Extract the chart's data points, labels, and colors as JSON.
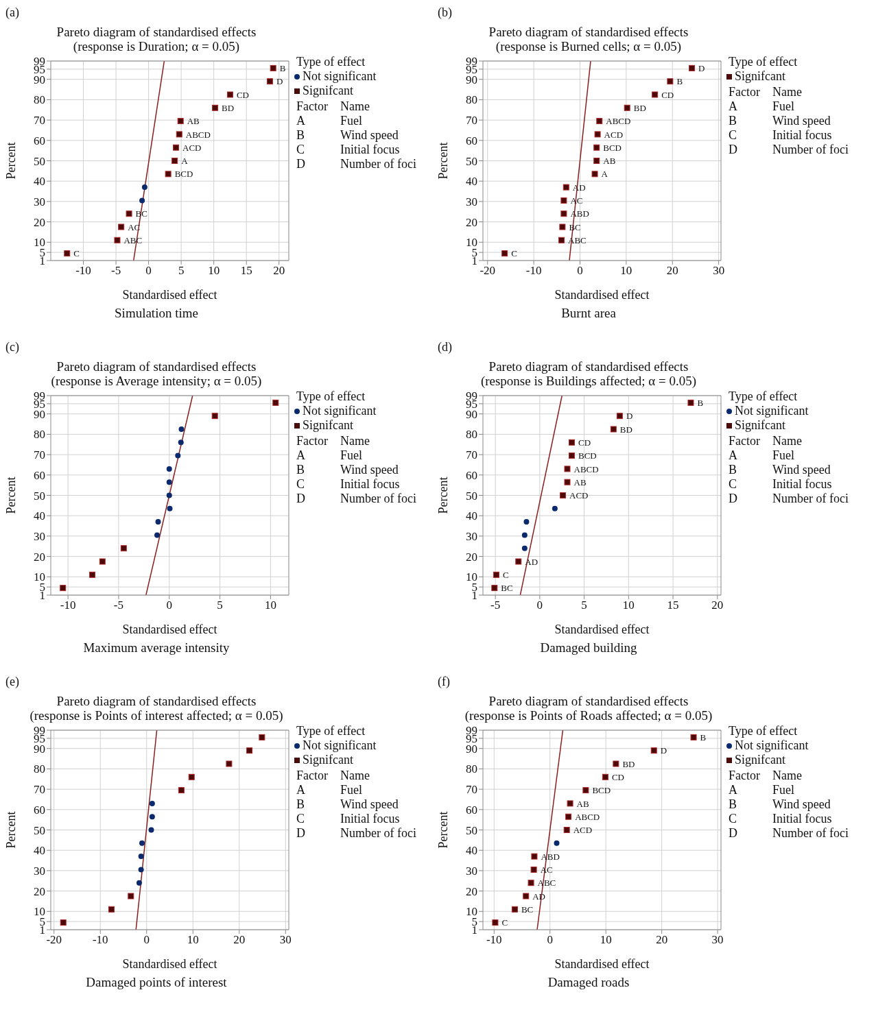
{
  "chart_data": [
    {
      "type": "scatter",
      "title": "Pareto diagram of standardised effects",
      "subtitle": "(response is Duration; α = 0.05)",
      "xlabel": "Standardised effect",
      "ylabel": "Percent",
      "legend_title": "Type of effect",
      "legend": "right",
      "grid": true,
      "xlim": [
        -15,
        21.5
      ],
      "xticks": [
        -10,
        -5,
        0,
        5,
        10,
        15,
        20
      ],
      "ylim": [
        1,
        99
      ],
      "yticks": [
        1,
        5,
        10,
        20,
        30,
        40,
        50,
        60,
        70,
        80,
        90,
        95,
        99
      ],
      "annotations": [
        "(a)",
        "Simulation time",
        "Factor",
        "Name",
        "A",
        "Fuel",
        "B",
        "Wind speed",
        "C",
        "Initial focus",
        "D",
        "Number of foci"
      ],
      "series": [
        {
          "name": "Not significant",
          "marker": "circle",
          "color": "#0b2a6e",
          "x": [
            -1.0,
            -0.6
          ],
          "values": [
            30.5,
            37
          ]
        },
        {
          "name": "Signifcant",
          "marker": "square",
          "color": "#4d0a0a",
          "x": [
            -12.5,
            -4.8,
            -4.2,
            -3.0,
            3.0,
            4.0,
            4.2,
            4.7,
            4.9,
            10.2,
            12.5,
            18.6,
            19.1
          ],
          "values": [
            4.5,
            11,
            17.5,
            24,
            43.5,
            50,
            56.5,
            63,
            69.5,
            76,
            82.5,
            89,
            95.5
          ],
          "value_labels": [
            "C",
            "ABC",
            "AC",
            "BC",
            "BCD",
            "A",
            "ACD",
            "ABCD",
            "AB",
            "BD",
            "CD",
            "D",
            "B"
          ]
        },
        {
          "type": "line",
          "marker": "none",
          "color": "#8b1e1e",
          "x": [
            -2.3,
            2.4
          ],
          "values": [
            1,
            99
          ]
        }
      ]
    },
    {
      "type": "scatter",
      "title": "Pareto diagram of standardised effects",
      "subtitle": "(response is Burned cells; α = 0.05)",
      "xlabel": "Standardised effect",
      "ylabel": "Percent",
      "legend_title": "Type of effect",
      "legend": "right",
      "grid": true,
      "xlim": [
        -21,
        30.5
      ],
      "xticks": [
        -20,
        -10,
        0,
        10,
        20,
        30
      ],
      "ylim": [
        1,
        99
      ],
      "yticks": [
        1,
        5,
        10,
        20,
        30,
        40,
        50,
        60,
        70,
        80,
        90,
        95,
        99
      ],
      "annotations": [
        "(b)",
        "Burnt area",
        "Factor",
        "Name",
        "A",
        "Fuel",
        "B",
        "Wind speed",
        "C",
        "Initial focus",
        "D",
        "Number of foci"
      ],
      "series": [
        {
          "name": "Signifcant",
          "marker": "square",
          "color": "#4d0a0a",
          "x": [
            -16.3,
            -4.0,
            -3.8,
            -3.5,
            -3.5,
            -3.0,
            3.2,
            3.6,
            3.6,
            3.8,
            4.2,
            10.2,
            16.2,
            19.5,
            24.2
          ],
          "values": [
            4.5,
            11,
            17.5,
            24,
            30.5,
            37,
            43.5,
            50,
            56.5,
            63,
            69.5,
            76,
            82.5,
            89,
            95.5
          ],
          "value_labels": [
            "C",
            "ABC",
            "BC",
            "ABD",
            "AC",
            "AD",
            "A",
            "AB",
            "BCD",
            "ACD",
            "ABCD",
            "BD",
            "CD",
            "B",
            "D"
          ]
        },
        {
          "type": "line",
          "marker": "none",
          "color": "#8b1e1e",
          "x": [
            -2.3,
            2.3
          ],
          "values": [
            1,
            99
          ]
        }
      ]
    },
    {
      "type": "scatter",
      "title": "Pareto diagram of standardised effects",
      "subtitle": "(response is Average intensity; α = 0.05)",
      "xlabel": "Standardised effect",
      "ylabel": "Percent",
      "legend_title": "Type of effect",
      "legend": "right",
      "grid": true,
      "xlim": [
        -11.7,
        11.8
      ],
      "xticks": [
        -10,
        -5,
        0,
        5,
        10
      ],
      "ylim": [
        1,
        99
      ],
      "yticks": [
        1,
        5,
        10,
        20,
        30,
        40,
        50,
        60,
        70,
        80,
        90,
        95,
        99
      ],
      "annotations": [
        "(c)",
        "Maximum average intensity",
        "Factor",
        "Name",
        "A",
        "Fuel",
        "B",
        "Wind speed",
        "C",
        "Initial focus",
        "D",
        "Number of foci"
      ],
      "series": [
        {
          "name": "Not significant",
          "marker": "circle",
          "color": "#0b2a6e",
          "x": [
            -1.2,
            -1.1,
            0.05,
            0.0,
            0.0,
            0.0,
            0.85,
            1.15,
            1.2
          ],
          "values": [
            30.5,
            37,
            43.5,
            50,
            56.5,
            63,
            69.5,
            76,
            82.5
          ]
        },
        {
          "name": "Signifcant",
          "marker": "square",
          "color": "#4d0a0a",
          "x": [
            -10.5,
            -7.6,
            -6.6,
            -4.5,
            4.5,
            10.5
          ],
          "values": [
            4.5,
            11,
            17.5,
            24,
            89,
            95.5
          ]
        },
        {
          "type": "line",
          "marker": "none",
          "color": "#8b1e1e",
          "x": [
            -2.3,
            2.3
          ],
          "values": [
            1,
            99
          ]
        }
      ]
    },
    {
      "type": "scatter",
      "title": "Pareto diagram of standardised effects",
      "subtitle": "(response is Buildings affected; α = 0.05)",
      "xlabel": "Standardised effect",
      "ylabel": "Percent",
      "legend_title": "Type of effect",
      "legend": "right",
      "grid": true,
      "xlim": [
        -6.4,
        20.4
      ],
      "xticks": [
        -5,
        0,
        5,
        10,
        15,
        20
      ],
      "ylim": [
        1,
        99
      ],
      "yticks": [
        1,
        5,
        10,
        20,
        30,
        40,
        50,
        60,
        70,
        80,
        90,
        95,
        99
      ],
      "annotations": [
        "(d)",
        "Damaged building",
        "Factor",
        "Name",
        "A",
        "Fuel",
        "B",
        "Wind speed",
        "C",
        "Initial focus",
        "D",
        "Number of foci"
      ],
      "series": [
        {
          "name": "Not significant",
          "marker": "circle",
          "color": "#0b2a6e",
          "x": [
            -1.7,
            -1.7,
            -1.5,
            1.7
          ],
          "values": [
            24,
            30.5,
            37,
            43.5
          ]
        },
        {
          "name": "Signifcant",
          "marker": "square",
          "color": "#4d0a0a",
          "x": [
            -5.1,
            -4.9,
            -2.4,
            2.6,
            3.1,
            3.1,
            3.6,
            3.6,
            8.3,
            9.0,
            17.0
          ],
          "values": [
            4.5,
            11,
            17.5,
            50,
            56.5,
            63,
            69.5,
            76,
            82.5,
            89,
            95.5
          ],
          "value_labels": [
            "BC",
            "C",
            "AD",
            "ACD",
            "AB",
            "ABCD",
            "BCD",
            "CD",
            "BD",
            "D",
            "B"
          ]
        },
        {
          "type": "line",
          "marker": "none",
          "color": "#8b1e1e",
          "x": [
            -2.2,
            2.5
          ],
          "values": [
            1,
            99
          ]
        }
      ]
    },
    {
      "type": "scatter",
      "title": "Pareto diagram of standardised effects",
      "subtitle": "(response is Points of interest affected; α = 0.05)",
      "xlabel": "Standardised effect",
      "ylabel": "Percent",
      "legend_title": "Type of effect",
      "legend": "right",
      "grid": true,
      "xlim": [
        -20.7,
        30.7
      ],
      "xticks": [
        -20,
        -10,
        0,
        10,
        20,
        30
      ],
      "ylim": [
        1,
        99
      ],
      "yticks": [
        1,
        5,
        10,
        20,
        30,
        40,
        50,
        60,
        70,
        80,
        90,
        95,
        99
      ],
      "annotations": [
        "(e)",
        "Damaged points of interest",
        "Factor",
        "Name",
        "A",
        "Fuel",
        "B",
        "Wind speed",
        "C",
        "Initial focus",
        "D",
        "Number of foci"
      ],
      "series": [
        {
          "name": "Not significant",
          "marker": "circle",
          "color": "#0b2a6e",
          "x": [
            -1.6,
            -1.2,
            -1.2,
            -1.0,
            1.0,
            1.2,
            1.2
          ],
          "values": [
            24,
            30.5,
            37,
            43.5,
            50,
            56.5,
            63
          ]
        },
        {
          "name": "Signifcant",
          "marker": "square",
          "color": "#4d0a0a",
          "x": [
            -18.0,
            -7.6,
            -3.4,
            7.5,
            9.7,
            17.8,
            22.2,
            24.9
          ],
          "values": [
            4.5,
            11,
            17.5,
            69.5,
            76,
            82.5,
            89,
            95.5
          ]
        },
        {
          "type": "line",
          "marker": "none",
          "color": "#8b1e1e",
          "x": [
            -2.3,
            2.2
          ],
          "values": [
            1,
            99
          ]
        }
      ]
    },
    {
      "type": "scatter",
      "title": "Pareto diagram of standardised effects",
      "subtitle": "(response is Points of Roads affected; α = 0.05)",
      "xlabel": "Standardised effect",
      "ylabel": "Percent",
      "legend_title": "Type of effect",
      "legend": "right",
      "grid": true,
      "xlim": [
        -12,
        30.6
      ],
      "xticks": [
        -10,
        0,
        10,
        20,
        30
      ],
      "ylim": [
        1,
        99
      ],
      "yticks": [
        1,
        5,
        10,
        20,
        30,
        40,
        50,
        60,
        70,
        80,
        90,
        95,
        99
      ],
      "annotations": [
        "(f)",
        "Damaged roads",
        "Factor",
        "Name",
        "A",
        "Fuel",
        "B",
        "Wind speed",
        "C",
        "Initial focus",
        "D",
        "Number of foci"
      ],
      "series": [
        {
          "name": "Not significant",
          "marker": "circle",
          "color": "#0b2a6e",
          "x": [
            1.2
          ],
          "values": [
            43.5
          ]
        },
        {
          "name": "Signifcant",
          "marker": "square",
          "color": "#4d0a0a",
          "x": [
            -9.8,
            -6.3,
            -4.3,
            -3.4,
            -2.9,
            -2.8,
            3.0,
            3.3,
            3.6,
            6.4,
            9.9,
            11.8,
            18.6,
            25.7
          ],
          "values": [
            4.5,
            11,
            17.5,
            24,
            30.5,
            37,
            50,
            56.5,
            63,
            69.5,
            76,
            82.5,
            89,
            95.5
          ],
          "value_labels": [
            "C",
            "BC",
            "AD",
            "ABC",
            "AC",
            "ABD",
            "ACD",
            "ABCD",
            "AB",
            "BCD",
            "CD",
            "BD",
            "D",
            "B"
          ]
        },
        {
          "type": "line",
          "marker": "none",
          "color": "#8b1e1e",
          "x": [
            -2.3,
            2.3
          ],
          "values": [
            1,
            99
          ]
        }
      ]
    }
  ]
}
